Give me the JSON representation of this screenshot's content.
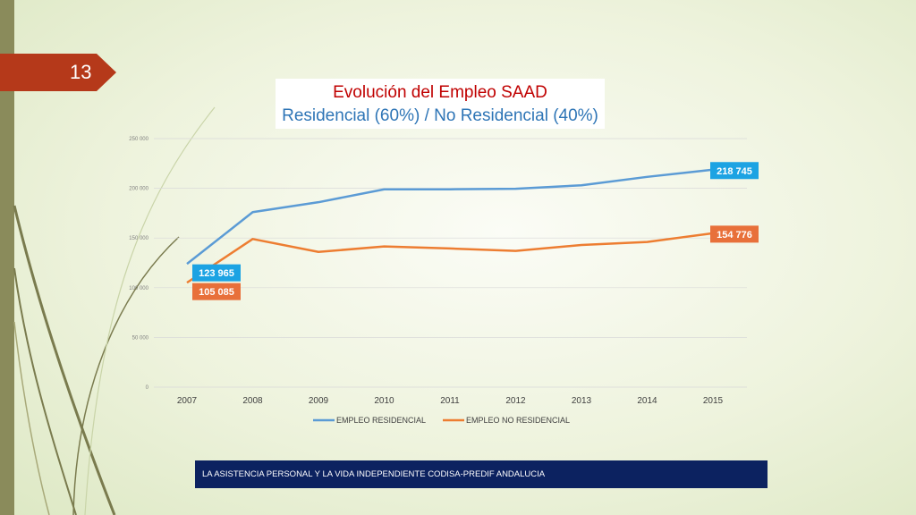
{
  "slide": {
    "number": "13"
  },
  "title": {
    "line1": "Evolución del Empleo SAAD",
    "line2": "Residencial (60%)  /  No Residencial (40%)"
  },
  "footer": {
    "text": "LA ASISTENCIA PERSONAL Y LA VIDA INDEPENDIENTE CODISA-PREDIF ANDALUCIA"
  },
  "colors": {
    "accent": "#b5391a",
    "footer_bg": "#0c2260",
    "residencial": "#5b9bd5",
    "no_residencial": "#ed7d31",
    "label_res_bg": "#1ca3e3",
    "label_nores_bg": "#e8703a"
  },
  "chart_data": {
    "type": "line",
    "x": [
      "2007",
      "2008",
      "2009",
      "2010",
      "2011",
      "2012",
      "2013",
      "2014",
      "2015"
    ],
    "yticks": [
      "0",
      "50 000",
      "100 000",
      "150 000",
      "200 000",
      "250 000"
    ],
    "ylim": [
      0,
      250000
    ],
    "grid": true,
    "legend_position": "bottom",
    "series": [
      {
        "name": "EMPLEO RESIDENCIAL",
        "values": [
          123965,
          176000,
          186000,
          199000,
          199000,
          199500,
          203000,
          211500,
          218745
        ],
        "labels": {
          "0": "123 965",
          "8": "218 745"
        }
      },
      {
        "name": "EMPLEO NO RESIDENCIAL",
        "values": [
          105085,
          149000,
          136000,
          141500,
          139500,
          137000,
          143000,
          146000,
          154776
        ],
        "labels": {
          "0": "105 085",
          "8": "154 776"
        }
      }
    ]
  }
}
